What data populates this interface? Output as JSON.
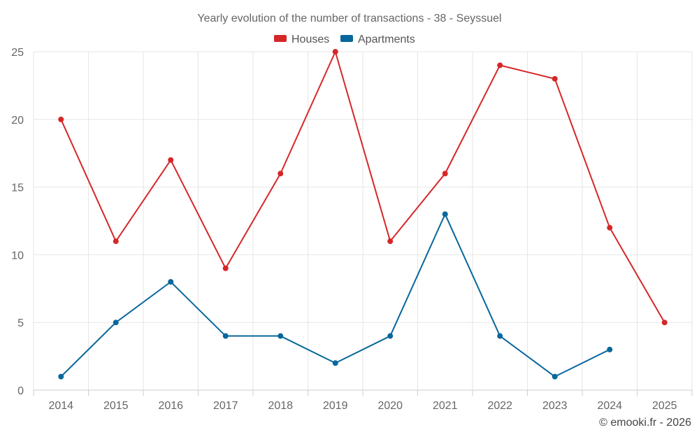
{
  "chart_data": {
    "type": "line",
    "title": "Yearly evolution of the number of transactions - 38 - Seyssuel",
    "categories": [
      "2014",
      "2015",
      "2016",
      "2017",
      "2018",
      "2019",
      "2020",
      "2021",
      "2022",
      "2023",
      "2024",
      "2025"
    ],
    "series": [
      {
        "name": "Houses",
        "color": "#d62728",
        "values": [
          20,
          11,
          17,
          9,
          16,
          25,
          11,
          16,
          24,
          23,
          12,
          5
        ]
      },
      {
        "name": "Apartments",
        "color": "#08679c",
        "values": [
          1,
          5,
          8,
          4,
          4,
          2,
          4,
          13,
          4,
          1,
          3,
          null
        ]
      }
    ],
    "yticks": [
      0,
      5,
      10,
      15,
      20,
      25
    ],
    "ylim": [
      0,
      25
    ],
    "legend": "top-center",
    "grid": true,
    "xlabel": "",
    "ylabel": ""
  },
  "credit": "© emooki.fr - 2026"
}
